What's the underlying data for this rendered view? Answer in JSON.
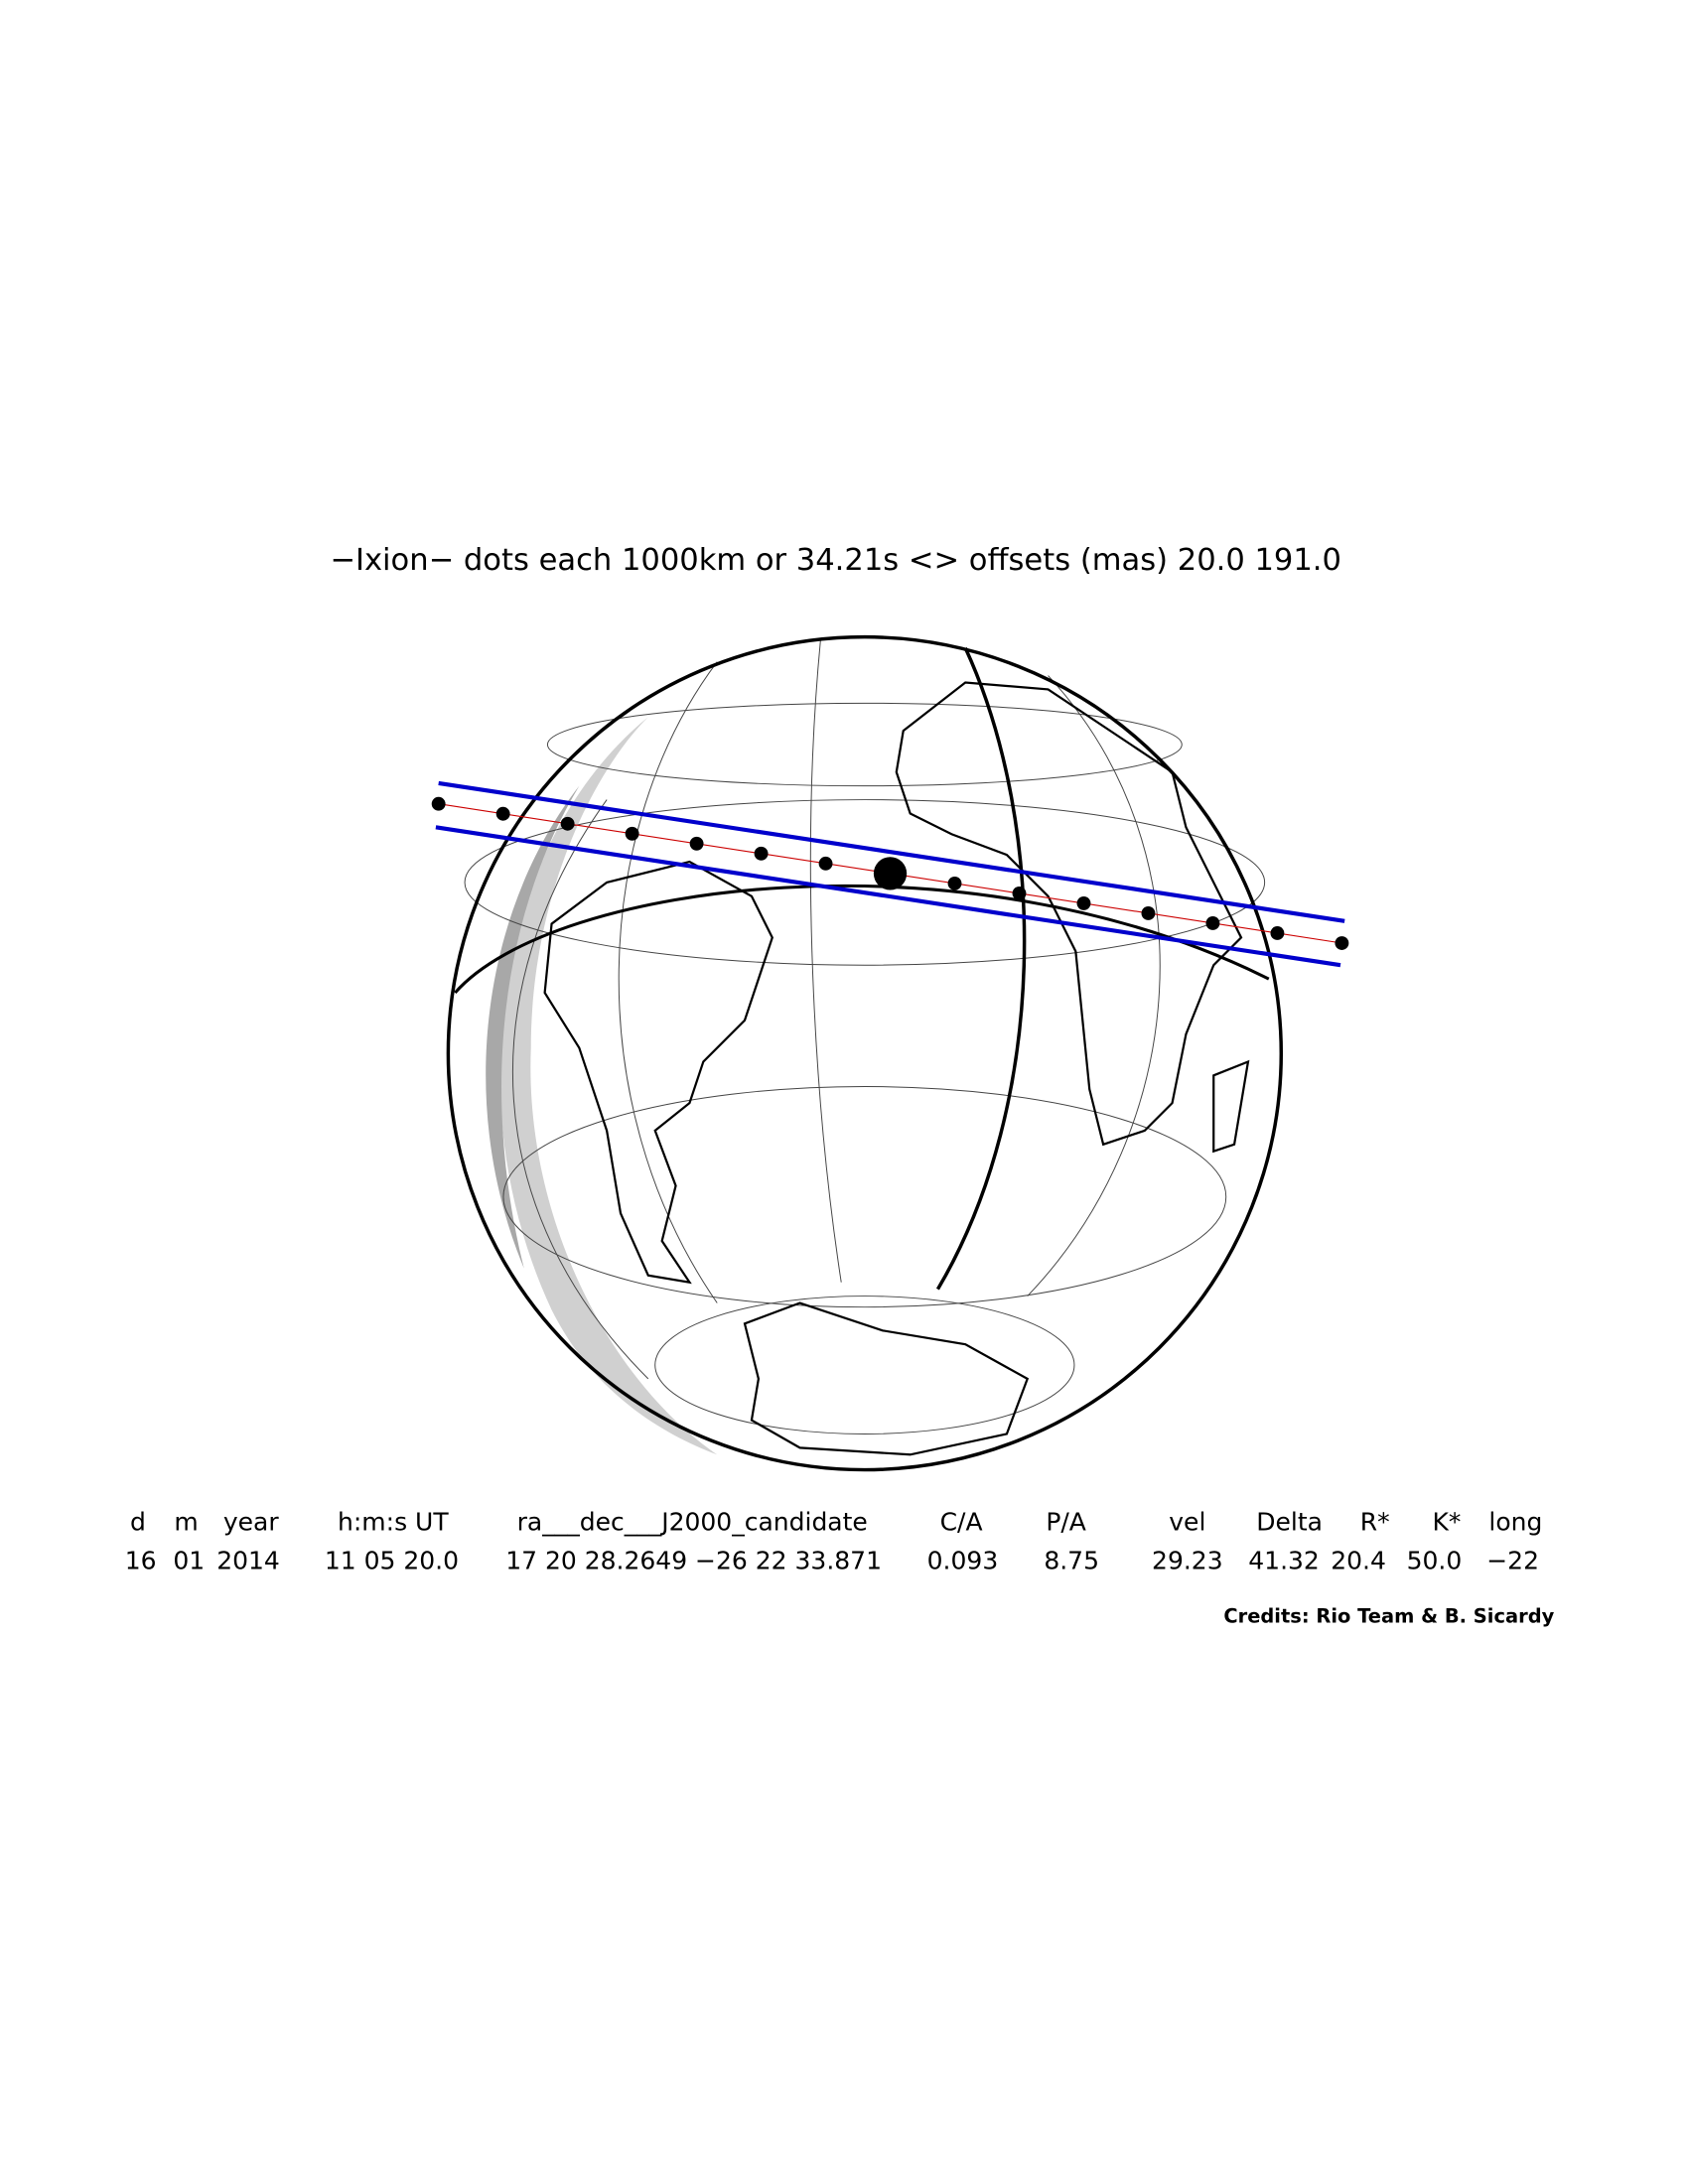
{
  "title": "−Ixion− dots each 1000km or 34.21s <> offsets (mas)    20.0   191.0",
  "table": {
    "headers": [
      "d",
      "m",
      "year",
      "h:m:s UT",
      "ra___dec___J2000_candidate",
      "C/A",
      "P/A",
      "vel",
      "Delta",
      "R*",
      "K*",
      "long"
    ],
    "rows": [
      [
        "16",
        "01",
        "2014",
        "11 05 20.0",
        "17 20 28.2649 −26 22 33.871",
        "0.093",
        "8.75",
        "29.23",
        "41.32",
        "20.4",
        "50.0",
        "−22"
      ]
    ]
  },
  "credits": "Credits: Rio Team & B. Sicardy"
}
